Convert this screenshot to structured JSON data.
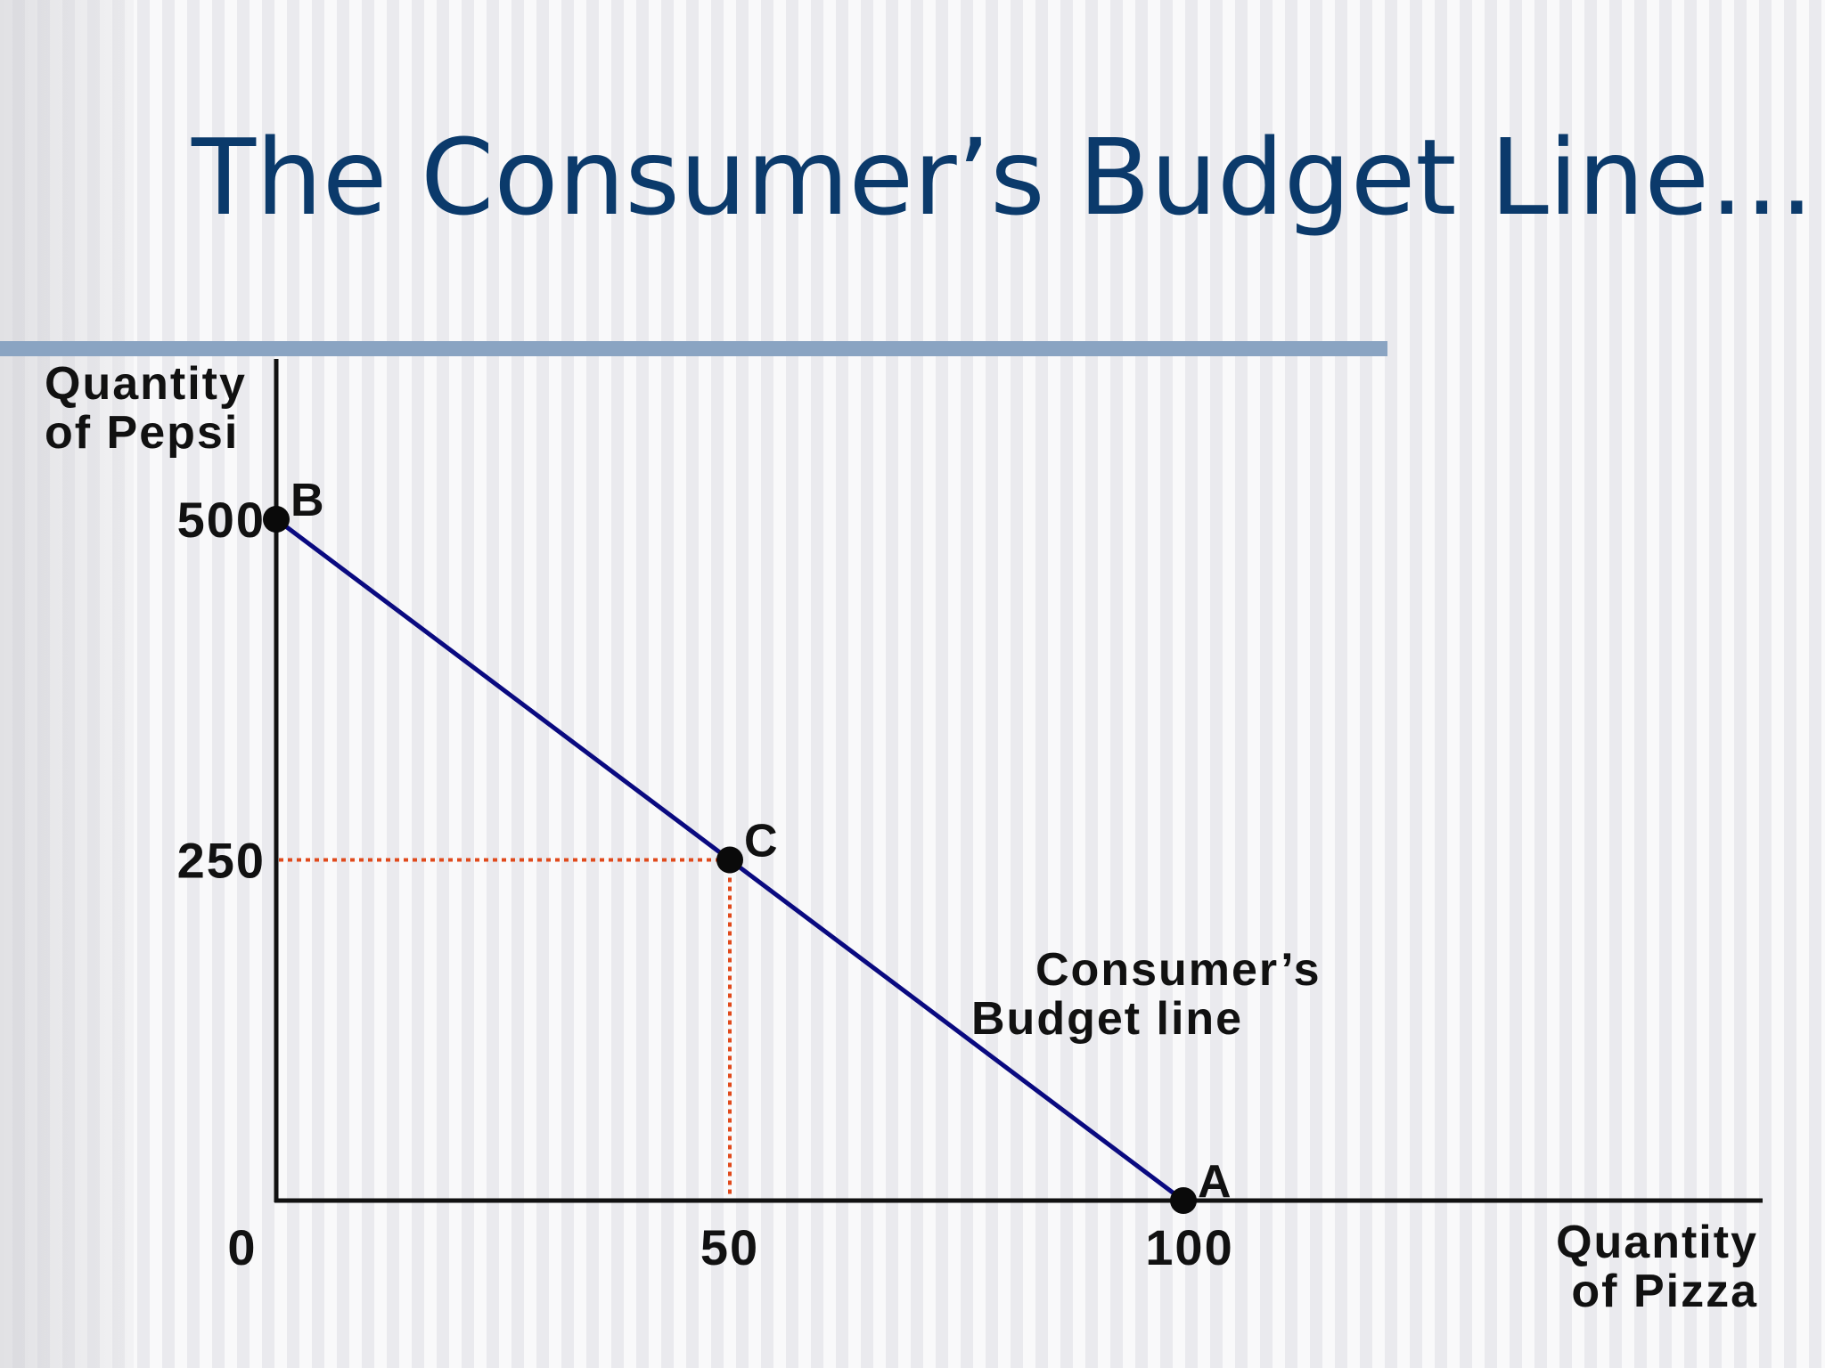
{
  "slide": {
    "title": "The Consumer’s Budget Line…"
  },
  "chart_data": {
    "type": "line",
    "xlabel": [
      "Quantity",
      "of Pizza"
    ],
    "ylabel": [
      "Quantity",
      "of Pepsi"
    ],
    "xlim": [
      0,
      100
    ],
    "ylim": [
      0,
      500
    ],
    "x_ticks": [
      "0",
      "50",
      "100"
    ],
    "y_ticks": [
      "500",
      "250"
    ],
    "series": [
      {
        "name": "Budget line",
        "x": [
          0,
          100
        ],
        "y": [
          500,
          0
        ]
      }
    ],
    "points": [
      {
        "label": "B",
        "x": 0,
        "y": 500
      },
      {
        "label": "C",
        "x": 50,
        "y": 250
      },
      {
        "label": "A",
        "x": 100,
        "y": 0
      }
    ],
    "guides": [
      {
        "x": 50,
        "y": 250
      }
    ],
    "annotation": [
      "Consumer’s",
      "Budget line"
    ],
    "colors": {
      "axis": "#111111",
      "budget_line": "#0a0a80",
      "guide": "#e04a1c",
      "point": "#0a0a0a",
      "title": "#0b3a6b",
      "rule": "#8aa4c2"
    }
  }
}
